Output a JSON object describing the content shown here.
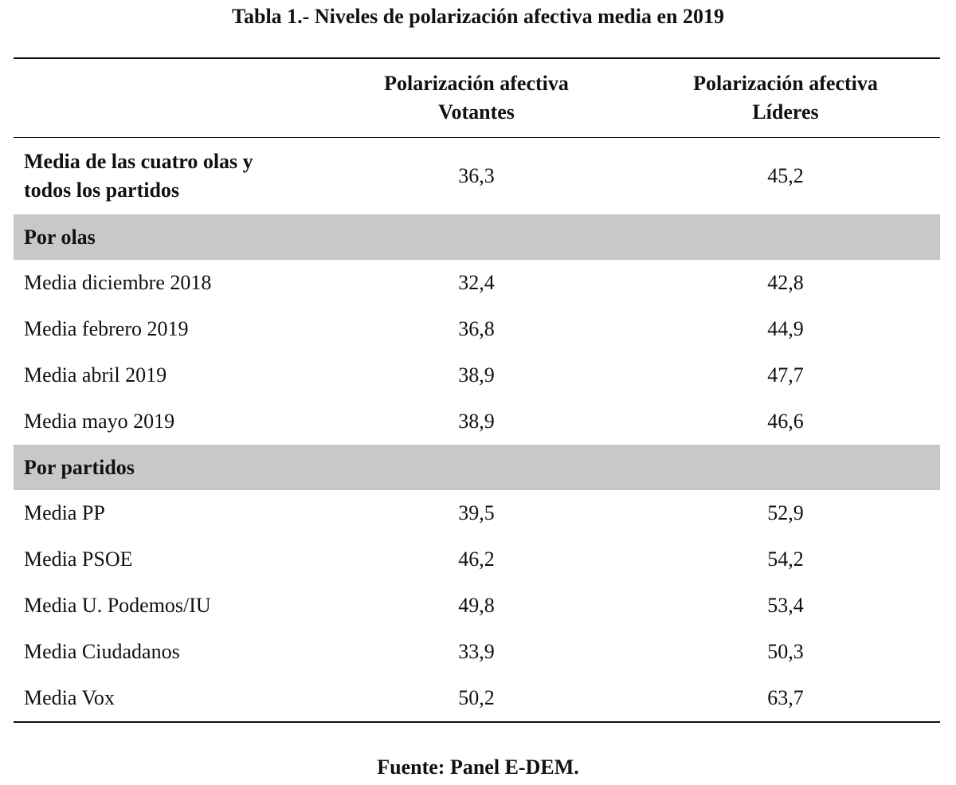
{
  "caption": "Tabla 1.- Niveles de polarización afectiva media en 2019",
  "headers": {
    "col1": "",
    "col2_line1": "Polarización afectiva",
    "col2_line2": "Votantes",
    "col3_line1": "Polarización afectiva",
    "col3_line2": "Líderes"
  },
  "summary": {
    "label_line1": "Media de las cuatro olas y",
    "label_line2": "todos los partidos",
    "votantes": "36,3",
    "lideres": "45,2"
  },
  "sections": [
    {
      "title": "Por olas",
      "rows": [
        {
          "label": "Media diciembre 2018",
          "votantes": "32,4",
          "lideres": "42,8"
        },
        {
          "label": "Media febrero 2019",
          "votantes": "36,8",
          "lideres": "44,9"
        },
        {
          "label": "Media abril 2019",
          "votantes": "38,9",
          "lideres": "47,7"
        },
        {
          "label": "Media mayo 2019",
          "votantes": "38,9",
          "lideres": "46,6"
        }
      ]
    },
    {
      "title": "Por partidos",
      "rows": [
        {
          "label": "Media PP",
          "votantes": "39,5",
          "lideres": "52,9"
        },
        {
          "label": "Media PSOE",
          "votantes": "46,2",
          "lideres": "54,2"
        },
        {
          "label": "Media U. Podemos/IU",
          "votantes": "49,8",
          "lideres": "53,4"
        },
        {
          "label": "Media Ciudadanos",
          "votantes": "33,9",
          "lideres": "50,3"
        },
        {
          "label": "Media Vox",
          "votantes": "50,2",
          "lideres": "63,7"
        }
      ]
    }
  ],
  "source": "Fuente: Panel E-DEM.",
  "colors": {
    "section_background": "#c8c8c8",
    "rule": "#111111"
  }
}
